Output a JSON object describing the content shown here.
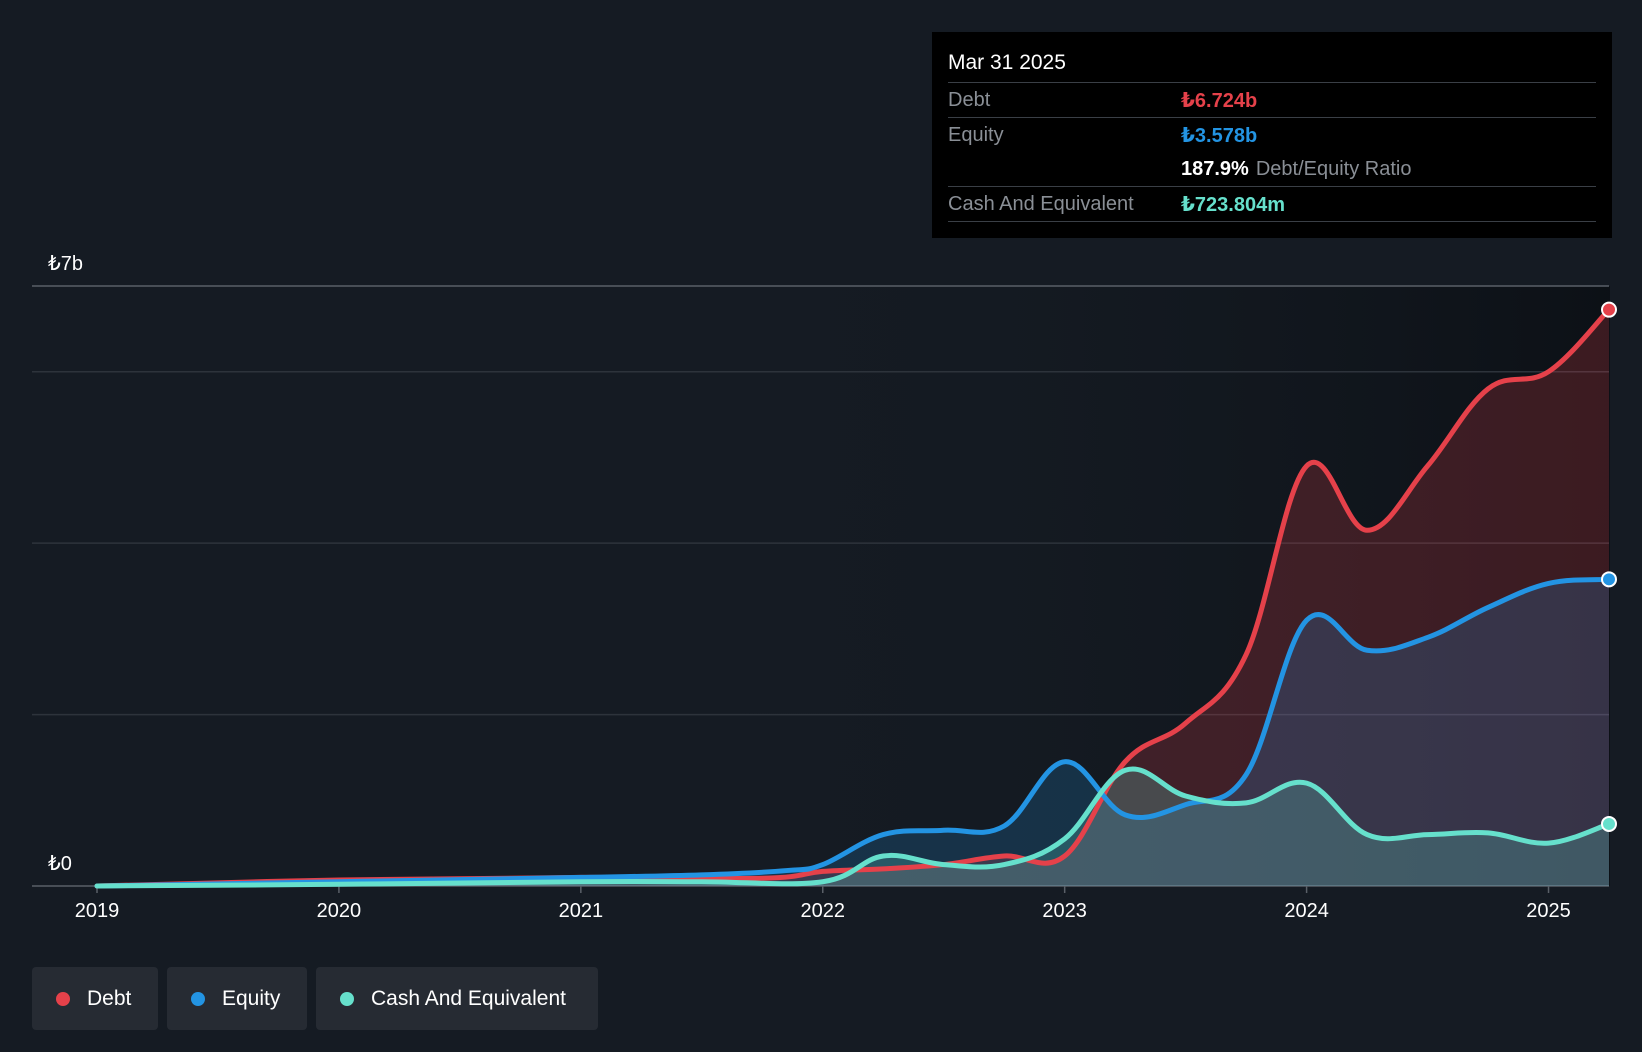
{
  "colors": {
    "debt": "#e5414a",
    "equity": "#2394e3",
    "cash": "#66e0cc",
    "background": "#151b23",
    "grid": "#2d333b"
  },
  "tooltip": {
    "date": "Mar 31 2025",
    "debt_label": "Debt",
    "debt_value": "₺6.724b",
    "equity_label": "Equity",
    "equity_value": "₺3.578b",
    "ratio_value": "187.9%",
    "ratio_label": "Debt/Equity Ratio",
    "cash_label": "Cash And Equivalent",
    "cash_value": "₺723.804m"
  },
  "legend": {
    "debt": "Debt",
    "equity": "Equity",
    "cash": "Cash And Equivalent"
  },
  "chart_data": {
    "type": "area",
    "title": "",
    "xlabel": "",
    "ylabel": "",
    "y_top_label": "₺7b",
    "y_bottom_label": "₺0",
    "ylim": [
      0,
      7
    ],
    "xlim": [
      2019.0,
      2025.25
    ],
    "x_ticks": [
      "2019",
      "2020",
      "2021",
      "2022",
      "2023",
      "2024",
      "2025"
    ],
    "x_tick_values": [
      2019,
      2020,
      2021,
      2022,
      2023,
      2024,
      2025
    ],
    "series": [
      {
        "name": "Debt",
        "points": [
          [
            2019.0,
            0.0
          ],
          [
            2020.0,
            0.07
          ],
          [
            2021.0,
            0.1
          ],
          [
            2021.75,
            0.09
          ],
          [
            2022.0,
            0.17
          ],
          [
            2022.25,
            0.2
          ],
          [
            2022.5,
            0.25
          ],
          [
            2022.75,
            0.35
          ],
          [
            2023.0,
            0.35
          ],
          [
            2023.25,
            1.45
          ],
          [
            2023.5,
            1.9
          ],
          [
            2023.75,
            2.7
          ],
          [
            2024.0,
            4.9
          ],
          [
            2024.25,
            4.15
          ],
          [
            2024.5,
            4.9
          ],
          [
            2024.75,
            5.8
          ],
          [
            2025.0,
            6.0
          ],
          [
            2025.25,
            6.724
          ]
        ]
      },
      {
        "name": "Equity",
        "points": [
          [
            2019.0,
            0.0
          ],
          [
            2020.0,
            0.05
          ],
          [
            2021.0,
            0.1
          ],
          [
            2021.5,
            0.13
          ],
          [
            2021.85,
            0.18
          ],
          [
            2022.0,
            0.25
          ],
          [
            2022.25,
            0.6
          ],
          [
            2022.5,
            0.65
          ],
          [
            2022.75,
            0.7
          ],
          [
            2023.0,
            1.45
          ],
          [
            2023.25,
            0.83
          ],
          [
            2023.5,
            0.95
          ],
          [
            2023.75,
            1.3
          ],
          [
            2024.0,
            3.1
          ],
          [
            2024.25,
            2.75
          ],
          [
            2024.5,
            2.9
          ],
          [
            2024.75,
            3.25
          ],
          [
            2025.0,
            3.53
          ],
          [
            2025.25,
            3.578
          ]
        ]
      },
      {
        "name": "Cash And Equivalent",
        "points": [
          [
            2019.0,
            0.0
          ],
          [
            2020.0,
            0.02
          ],
          [
            2021.0,
            0.05
          ],
          [
            2021.5,
            0.05
          ],
          [
            2022.0,
            0.05
          ],
          [
            2022.25,
            0.35
          ],
          [
            2022.5,
            0.25
          ],
          [
            2022.75,
            0.25
          ],
          [
            2023.0,
            0.55
          ],
          [
            2023.25,
            1.35
          ],
          [
            2023.5,
            1.05
          ],
          [
            2023.75,
            0.97
          ],
          [
            2024.0,
            1.2
          ],
          [
            2024.25,
            0.6
          ],
          [
            2024.5,
            0.6
          ],
          [
            2024.75,
            0.62
          ],
          [
            2025.0,
            0.5
          ],
          [
            2025.25,
            0.724
          ]
        ]
      }
    ]
  }
}
